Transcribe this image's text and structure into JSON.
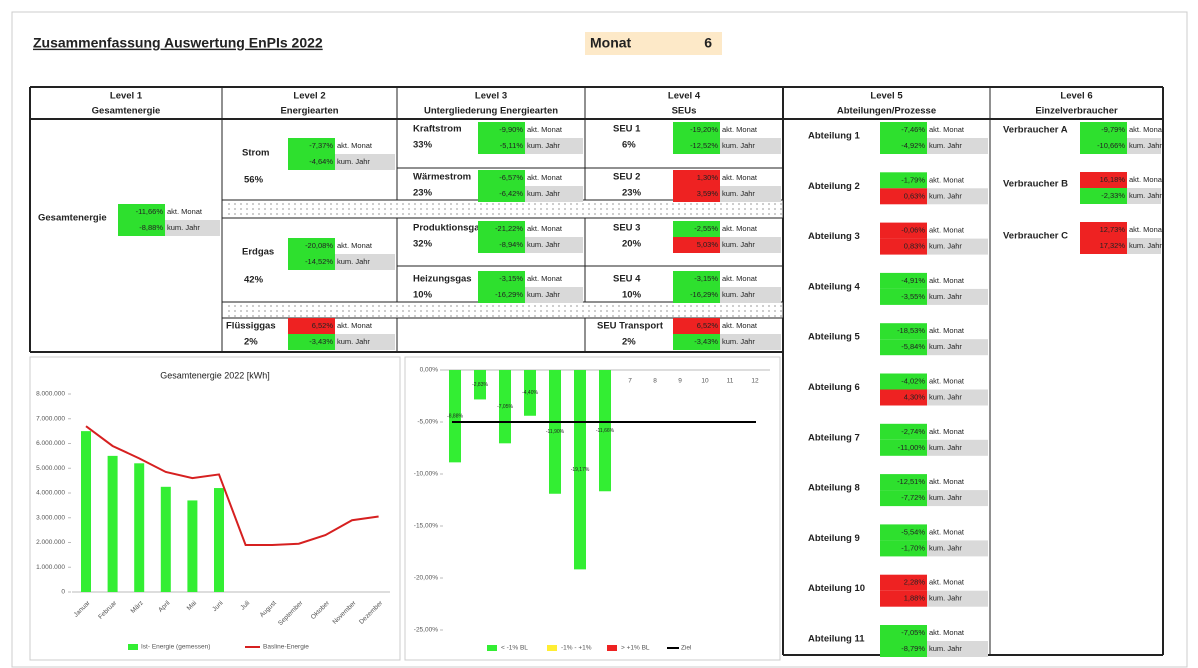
{
  "header": {
    "title": "Zusammenfassung Auswertung EnPIs  2022",
    "month_label": "Monat",
    "month_value": 6
  },
  "levels": [
    {
      "level": "Level 1",
      "name": "Gesamtenergie"
    },
    {
      "level": "Level 2",
      "name": "Energiearten"
    },
    {
      "level": "Level 3",
      "name": "Untergliederung Energiearten"
    },
    {
      "level": "Level 4",
      "name": "SEUs"
    },
    {
      "level": "Level 5",
      "name": "Abteilungen/Prozesse"
    },
    {
      "level": "Level 6",
      "name": "Einzelverbraucher"
    }
  ],
  "metric_labels": {
    "month": "akt. Monat",
    "year": "kum. Jahr"
  },
  "level1": [
    {
      "name": "Gesamtenergie",
      "month": {
        "value": "-11,66%",
        "color": "#2ee02e"
      },
      "year": {
        "value": "-8,88%",
        "color": "#2ee02e"
      }
    }
  ],
  "level2": [
    {
      "name": "Strom",
      "share": "56%",
      "month": {
        "value": "-7,37%",
        "color": "#2ee02e"
      },
      "year": {
        "value": "-4,64%",
        "color": "#2ee02e"
      }
    },
    {
      "name": "Erdgas",
      "share": "42%",
      "month": {
        "value": "-20,08%",
        "color": "#2ee02e"
      },
      "year": {
        "value": "-14,52%",
        "color": "#2ee02e"
      }
    },
    {
      "name": "Flüssiggas",
      "share": "2%",
      "month": {
        "value": "6,52%",
        "color": "#ee2222"
      },
      "year": {
        "value": "-3,43%",
        "color": "#2ee02e"
      }
    }
  ],
  "level3": [
    {
      "name": "Kraftstrom",
      "share": "33%",
      "month": {
        "value": "-9,90%",
        "color": "#2ee02e"
      },
      "year": {
        "value": "-5,11%",
        "color": "#2ee02e"
      }
    },
    {
      "name": "Wärmestrom",
      "share": "23%",
      "month": {
        "value": "-6,57%",
        "color": "#2ee02e"
      },
      "year": {
        "value": "-6,42%",
        "color": "#2ee02e"
      }
    },
    {
      "name": "Produktionsgas",
      "share": "32%",
      "month": {
        "value": "-21,22%",
        "color": "#2ee02e"
      },
      "year": {
        "value": "-8,94%",
        "color": "#2ee02e"
      }
    },
    {
      "name": "Heizungsgas",
      "share": "10%",
      "month": {
        "value": "-3,15%",
        "color": "#2ee02e"
      },
      "year": {
        "value": "-16,29%",
        "color": "#2ee02e"
      }
    }
  ],
  "level4": [
    {
      "name": "SEU 1",
      "share": "6%",
      "month": {
        "value": "-19,20%",
        "color": "#2ee02e"
      },
      "year": {
        "value": "-12,52%",
        "color": "#2ee02e"
      }
    },
    {
      "name": "SEU 2",
      "share": "23%",
      "month": {
        "value": "1,30%",
        "color": "#ee2222"
      },
      "year": {
        "value": "3,59%",
        "color": "#ee2222"
      }
    },
    {
      "name": "SEU 3",
      "share": "20%",
      "month": {
        "value": "-2,55%",
        "color": "#2ee02e"
      },
      "year": {
        "value": "5,03%",
        "color": "#ee2222"
      }
    },
    {
      "name": "SEU 4",
      "share": "10%",
      "month": {
        "value": "-3,15%",
        "color": "#2ee02e"
      },
      "year": {
        "value": "-16,29%",
        "color": "#2ee02e"
      }
    },
    {
      "name": "SEU Transport",
      "share": "2%",
      "month": {
        "value": "6,52%",
        "color": "#ee2222"
      },
      "year": {
        "value": "-3,43%",
        "color": "#2ee02e"
      }
    }
  ],
  "level5": [
    {
      "name": "Abteilung 1",
      "month": {
        "value": "-7,46%",
        "color": "#2ee02e"
      },
      "year": {
        "value": "-4,92%",
        "color": "#2ee02e"
      }
    },
    {
      "name": "Abteilung 2",
      "month": {
        "value": "-1,79%",
        "color": "#2ee02e"
      },
      "year": {
        "value": "0,63%",
        "color": "#ee2222"
      }
    },
    {
      "name": "Abteilung 3",
      "month": {
        "value": "-0,06%",
        "color": "#ee2222"
      },
      "year": {
        "value": "0,83%",
        "color": "#ee2222"
      }
    },
    {
      "name": "Abteilung 4",
      "month": {
        "value": "-4,91%",
        "color": "#2ee02e"
      },
      "year": {
        "value": "-3,55%",
        "color": "#2ee02e"
      }
    },
    {
      "name": "Abteilung 5",
      "month": {
        "value": "-18,53%",
        "color": "#2ee02e"
      },
      "year": {
        "value": "-5,84%",
        "color": "#2ee02e"
      }
    },
    {
      "name": "Abteilung 6",
      "month": {
        "value": "-4,02%",
        "color": "#2ee02e"
      },
      "year": {
        "value": "4,30%",
        "color": "#ee2222"
      }
    },
    {
      "name": "Abteilung 7",
      "month": {
        "value": "-2,74%",
        "color": "#2ee02e"
      },
      "year": {
        "value": "-11,00%",
        "color": "#2ee02e"
      }
    },
    {
      "name": "Abteilung 8",
      "month": {
        "value": "-12,51%",
        "color": "#2ee02e"
      },
      "year": {
        "value": "-7,72%",
        "color": "#2ee02e"
      }
    },
    {
      "name": "Abteilung 9",
      "month": {
        "value": "-5,54%",
        "color": "#2ee02e"
      },
      "year": {
        "value": "-1,70%",
        "color": "#2ee02e"
      }
    },
    {
      "name": "Abteilung 10",
      "month": {
        "value": "2,28%",
        "color": "#ee2222"
      },
      "year": {
        "value": "1,88%",
        "color": "#ee2222"
      }
    },
    {
      "name": "Abteilung 11",
      "month": {
        "value": "-7,05%",
        "color": "#2ee02e"
      },
      "year": {
        "value": "-8,79%",
        "color": "#2ee02e"
      }
    }
  ],
  "level6": [
    {
      "name": "Verbraucher A",
      "month": {
        "value": "-9,79%",
        "color": "#2ee02e"
      },
      "year": {
        "value": "-10,66%",
        "color": "#2ee02e"
      }
    },
    {
      "name": "Verbraucher B",
      "month": {
        "value": "16,18%",
        "color": "#ee2222"
      },
      "year": {
        "value": "-2,33%",
        "color": "#2ee02e"
      }
    },
    {
      "name": "Verbraucher C",
      "month": {
        "value": "12,73%",
        "color": "#ee2222"
      },
      "year": {
        "value": "17,32%",
        "color": "#ee2222"
      }
    }
  ],
  "chart_data": [
    {
      "type": "bar_line",
      "title": "Gesamtenergie 2022 [kWh]",
      "categories": [
        "Januar",
        "Februar",
        "März",
        "April",
        "Mai",
        "Juni",
        "Juli",
        "August",
        "September",
        "Oktober",
        "November",
        "Dezember"
      ],
      "series": [
        {
          "name": "Ist- Energie (gemessen)",
          "color": "#33ee33",
          "values": [
            6500000,
            5500000,
            5200000,
            4250000,
            3700000,
            4200000,
            null,
            null,
            null,
            null,
            null,
            null
          ]
        },
        {
          "name": "Basline-Energie",
          "color": "#d62020",
          "values": [
            6700000,
            5900000,
            5400000,
            4850000,
            4600000,
            4750000,
            1900000,
            1900000,
            1950000,
            2300000,
            2900000,
            3050000
          ]
        }
      ],
      "ylim": [
        0,
        8000000
      ],
      "yticks": [
        0,
        {
          "value": 1000000,
          "label": "1.000.000"
        },
        {
          "value": 2000000,
          "label": "2.000.000"
        },
        {
          "value": 3000000,
          "label": "3.000.000"
        },
        {
          "value": 4000000,
          "label": "4.000.000"
        },
        {
          "value": 5000000,
          "label": "5.000.000"
        },
        {
          "value": 6000000,
          "label": "6.000.000"
        },
        {
          "value": 7000000,
          "label": "7.000.000"
        },
        {
          "value": 8000000,
          "label": "8.000.000"
        }
      ],
      "grid": false
    },
    {
      "type": "bar",
      "categories": [
        null,
        "1",
        "2",
        "3",
        "4",
        "5",
        "6",
        "7",
        "8",
        "9",
        "10",
        "11",
        "12"
      ],
      "values": [
        -8.88,
        -2.83,
        -7.05,
        -4.4,
        -11.9,
        -19.17,
        -11.66,
        null,
        null,
        null,
        null,
        null,
        null
      ],
      "value_labels": [
        "-8,88%",
        "-2,83%",
        "-7,05%",
        "-4,40%",
        "-11,90%",
        "-19,17%",
        "-11,66%",
        null,
        null,
        null,
        null,
        null,
        null
      ],
      "color": "#33ee33",
      "target": -5,
      "legend": [
        {
          "name": "< -1% BL",
          "color": "#33ee33"
        },
        {
          "name": "-1% - +1%",
          "color": "#ffee33"
        },
        {
          "name": "> +1% BL",
          "color": "#ee2222"
        },
        {
          "name": "Ziel",
          "color": "#000000"
        }
      ],
      "ylim": [
        -25,
        0
      ],
      "yticks": [
        {
          "value": 0,
          "label": "0,00%"
        },
        {
          "value": -5,
          "label": "-5,00%"
        },
        {
          "value": -10,
          "label": "-10,00%"
        },
        {
          "value": -15,
          "label": "-15,00%"
        },
        {
          "value": -20,
          "label": "-20,00%"
        },
        {
          "value": -25,
          "label": "-25,00%"
        }
      ],
      "grid": false
    }
  ]
}
